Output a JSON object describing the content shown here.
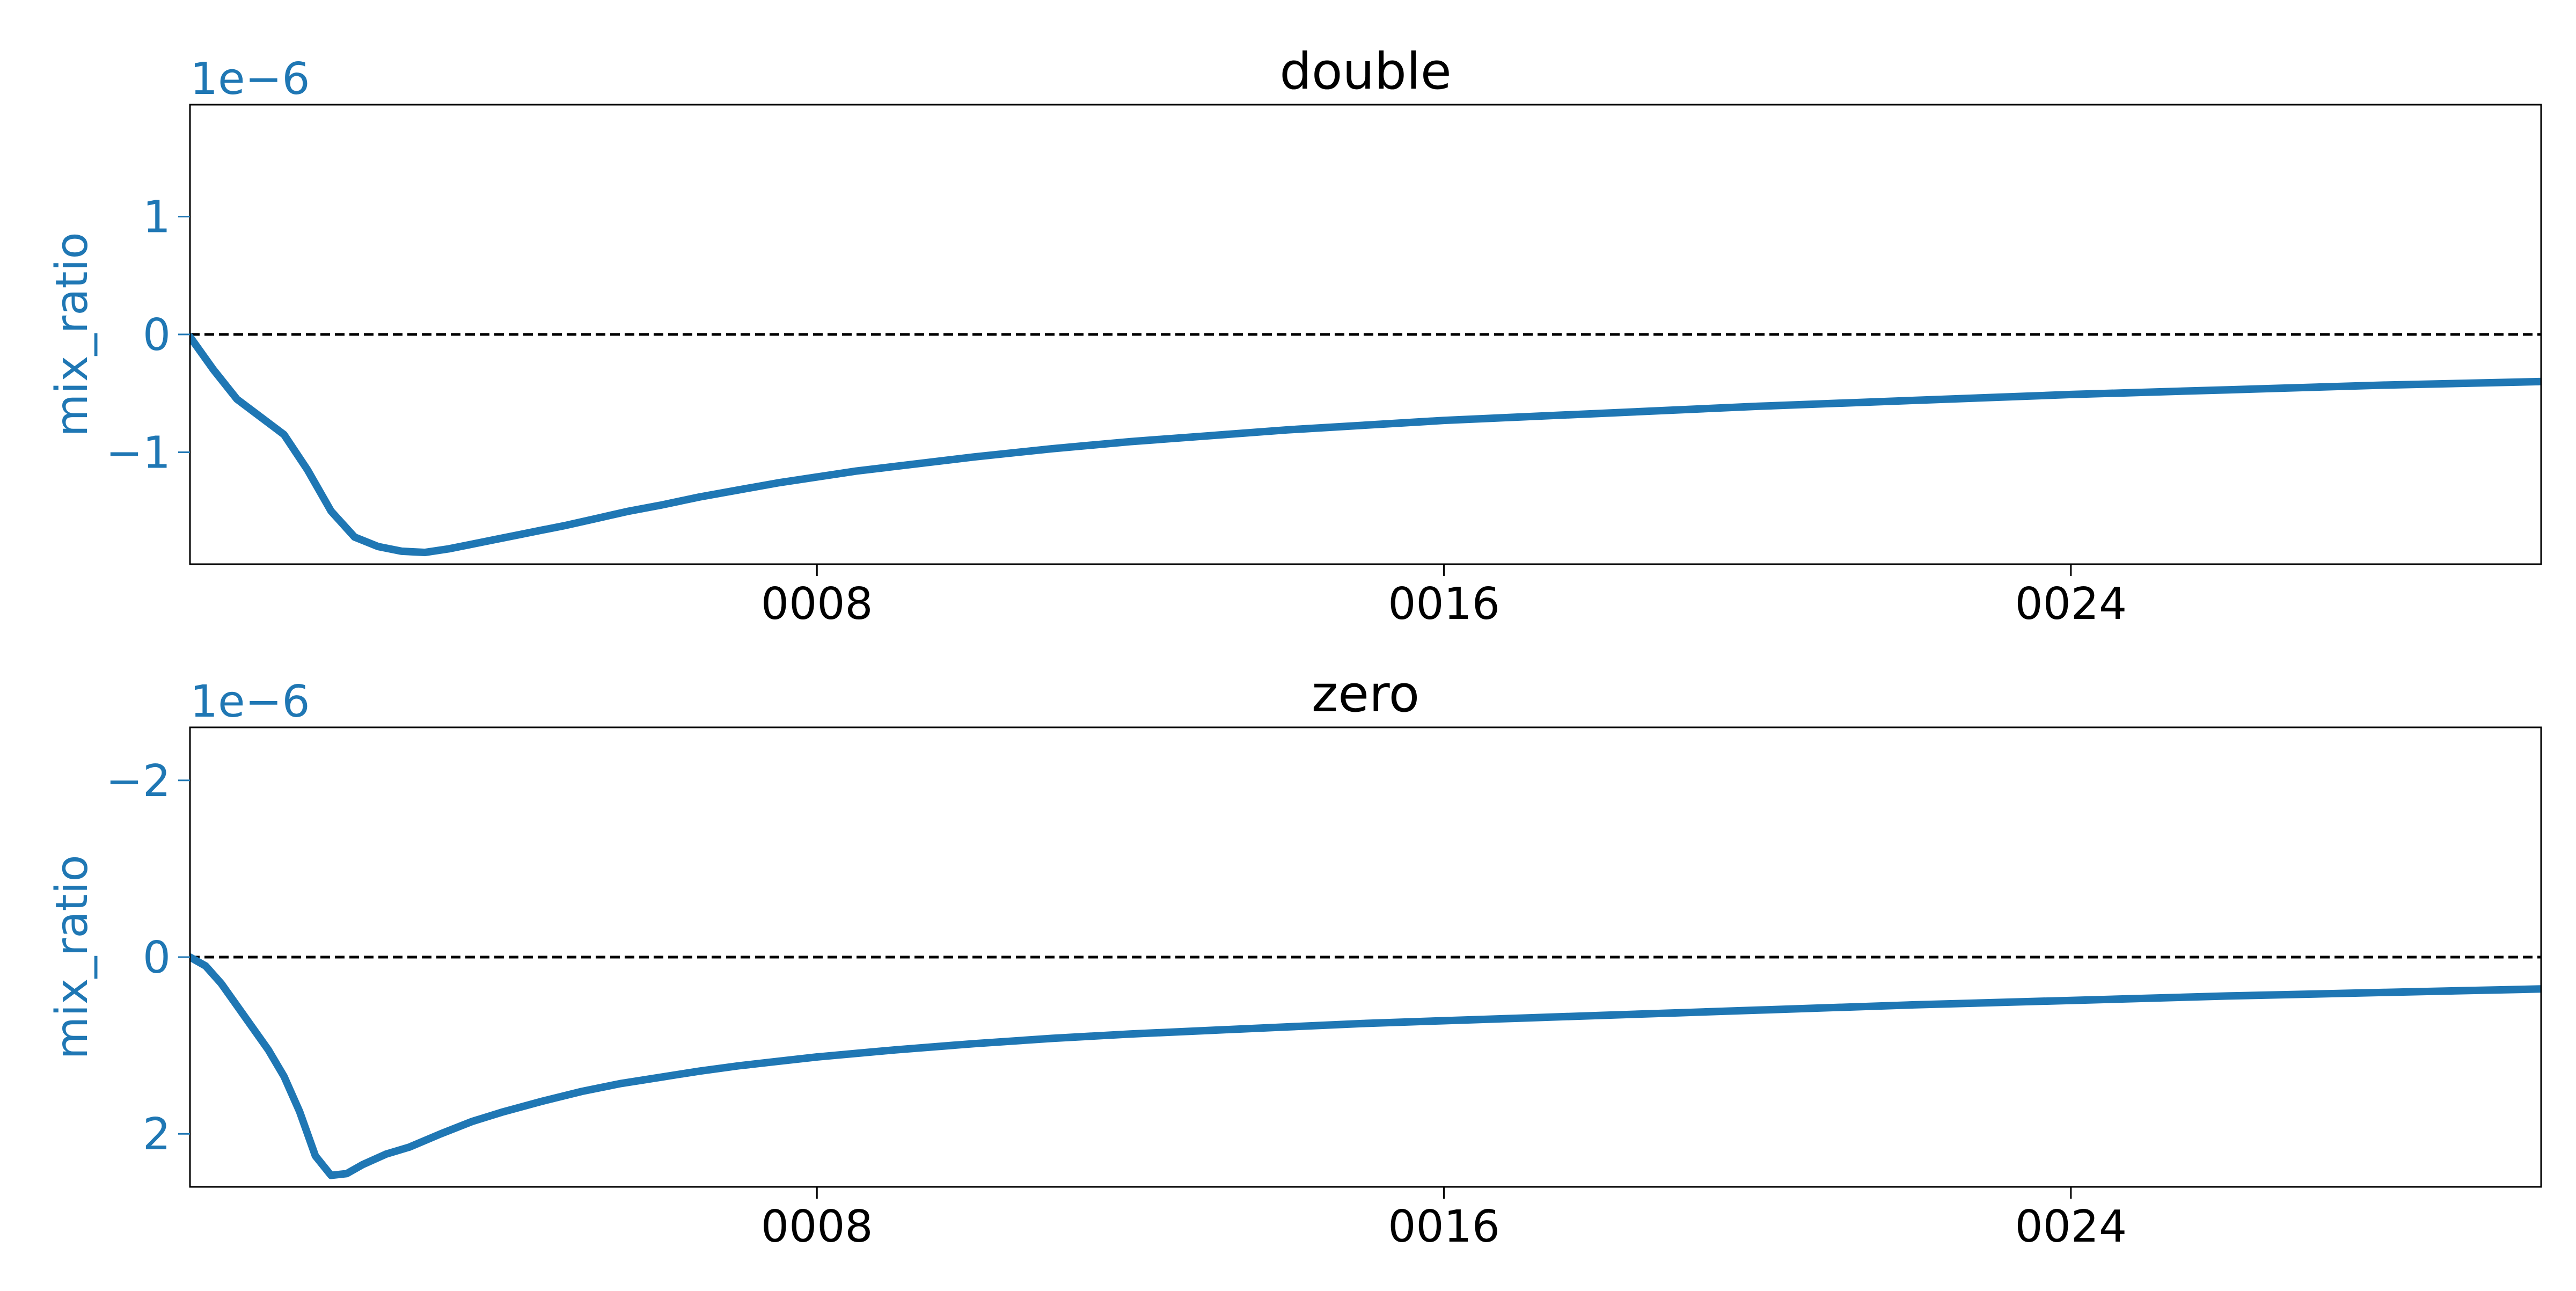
{
  "chart_data": [
    {
      "type": "line",
      "title": "double",
      "xlabel": "",
      "ylabel": "mix_ratio",
      "y_offset_label": "1e−6",
      "y_inverted": false,
      "xlim": [
        0,
        30
      ],
      "ylim": [
        -1.95,
        1.95
      ],
      "x_ticks": [
        8,
        16,
        24
      ],
      "x_tick_labels": [
        "0008",
        "0016",
        "0024"
      ],
      "y_ticks": [
        -1,
        0,
        1
      ],
      "y_tick_labels": [
        "−1",
        "0",
        "1"
      ],
      "reference_line": {
        "y": 0,
        "style": "dashed",
        "color": "#000000"
      },
      "grid": false,
      "legend": null,
      "series": [
        {
          "color": "#1f77b4",
          "x": [
            0,
            0.3,
            0.6,
            0.9,
            1.2,
            1.5,
            1.8,
            2.1,
            2.4,
            2.7,
            3.0,
            3.3,
            3.6,
            3.9,
            4.2,
            4.5,
            4.8,
            5.2,
            5.6,
            6.0,
            6.5,
            7.0,
            7.5,
            8.0,
            8.5,
            9.0,
            10,
            11,
            12,
            13,
            14,
            15,
            16,
            17,
            18,
            19,
            20,
            22,
            24,
            26,
            28,
            30
          ],
          "y": [
            -0.02,
            -0.3,
            -0.55,
            -0.7,
            -0.85,
            -1.15,
            -1.5,
            -1.72,
            -1.8,
            -1.84,
            -1.85,
            -1.82,
            -1.78,
            -1.74,
            -1.7,
            -1.66,
            -1.62,
            -1.56,
            -1.5,
            -1.45,
            -1.38,
            -1.32,
            -1.26,
            -1.21,
            -1.16,
            -1.12,
            -1.04,
            -0.97,
            -0.91,
            -0.86,
            -0.81,
            -0.77,
            -0.73,
            -0.7,
            -0.67,
            -0.64,
            -0.61,
            -0.56,
            -0.51,
            -0.47,
            -0.43,
            -0.4
          ]
        }
      ]
    },
    {
      "type": "line",
      "title": "zero",
      "xlabel": "",
      "ylabel": "mix_ratio",
      "y_offset_label": "1e−6",
      "y_inverted": true,
      "xlim": [
        0,
        30
      ],
      "ylim": [
        -2.6,
        2.6
      ],
      "x_ticks": [
        8,
        16,
        24
      ],
      "x_tick_labels": [
        "0008",
        "0016",
        "0024"
      ],
      "y_ticks": [
        -2,
        0,
        2
      ],
      "y_tick_labels": [
        "−2",
        "0",
        "2"
      ],
      "reference_line": {
        "y": 0,
        "style": "dashed",
        "color": "#000000"
      },
      "grid": false,
      "legend": null,
      "series": [
        {
          "color": "#1f77b4",
          "x": [
            0,
            0.2,
            0.4,
            0.6,
            0.8,
            1.0,
            1.2,
            1.4,
            1.6,
            1.8,
            2.0,
            2.2,
            2.5,
            2.8,
            3.2,
            3.6,
            4.0,
            4.5,
            5.0,
            5.5,
            6.0,
            6.5,
            7.0,
            7.5,
            8.0,
            8.5,
            9.0,
            10,
            11,
            12,
            13,
            14,
            15,
            16,
            17,
            18,
            19,
            20,
            22,
            24,
            26,
            28,
            30
          ],
          "y": [
            0,
            0.1,
            0.3,
            0.55,
            0.8,
            1.05,
            1.35,
            1.75,
            2.25,
            2.47,
            2.45,
            2.35,
            2.23,
            2.15,
            2.0,
            1.86,
            1.75,
            1.63,
            1.52,
            1.43,
            1.36,
            1.29,
            1.23,
            1.18,
            1.13,
            1.09,
            1.05,
            0.98,
            0.92,
            0.87,
            0.83,
            0.79,
            0.75,
            0.72,
            0.69,
            0.66,
            0.63,
            0.6,
            0.54,
            0.49,
            0.44,
            0.4,
            0.36
          ]
        }
      ]
    }
  ]
}
